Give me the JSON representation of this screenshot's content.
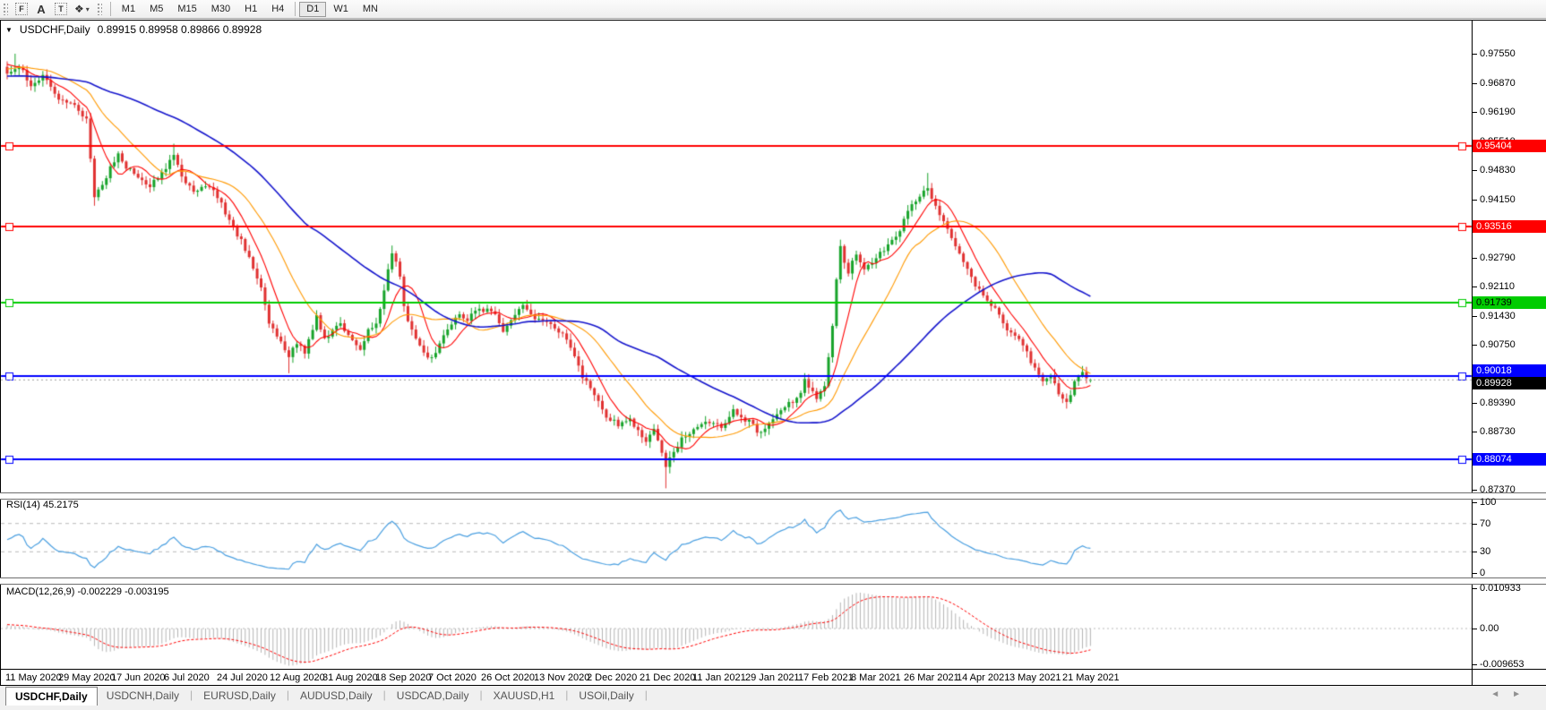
{
  "toolbar": {
    "tools": [
      {
        "name": "fibonacci-tool",
        "glyph": "F"
      },
      {
        "name": "text-tool",
        "glyph": "A"
      },
      {
        "name": "text-label-tool",
        "glyph": "T"
      },
      {
        "name": "arrows-tool",
        "glyph": "❖",
        "caret": "▾"
      }
    ],
    "timeframes": [
      "M1",
      "M5",
      "M15",
      "M30",
      "H1",
      "H4",
      "D1",
      "W1",
      "MN"
    ],
    "active_timeframe": "D1"
  },
  "chart": {
    "collapse_glyph": "▼",
    "symbol_period": "USDCHF,Daily",
    "ohlc_text": "0.89915 0.89958 0.89866 0.89928",
    "open": "0.89915",
    "high": "0.89958",
    "low": "0.89866",
    "close": "0.89928",
    "price_ticks": [
      "0.97550",
      "0.96870",
      "0.96190",
      "0.95510",
      "0.94830",
      "0.94150",
      "0.93470",
      "0.92790",
      "0.92110",
      "0.91430",
      "0.90750",
      "0.90070",
      "0.89390",
      "0.88730",
      "0.88050",
      "0.87370"
    ],
    "hlines": [
      {
        "price": "0.95404",
        "value": 0.95404,
        "color": "#FF0000",
        "text_color": "#FFFFFF"
      },
      {
        "price": "0.93516",
        "value": 0.93516,
        "color": "#FF0000",
        "text_color": "#FFFFFF"
      },
      {
        "price": "0.91739",
        "value": 0.91739,
        "color": "#00CC00",
        "text_color": "#000000"
      },
      {
        "price": "0.90018",
        "value": 0.90018,
        "color": "#0000FF",
        "text_color": "#FFFFFF"
      },
      {
        "price": "0.88074",
        "value": 0.88074,
        "color": "#0000FF",
        "text_color": "#FFFFFF"
      }
    ],
    "bid": {
      "price": "0.89928",
      "value": 0.89928,
      "label_bg": "#000000",
      "text_color": "#FFFFFF"
    }
  },
  "rsi": {
    "label": "RSI(14) 45.2175",
    "period": 14,
    "value": "45.2175",
    "levels": [
      {
        "label": "100",
        "value": 100
      },
      {
        "label": "70",
        "value": 70
      },
      {
        "label": "30",
        "value": 30
      },
      {
        "label": "0",
        "value": 0
      }
    ]
  },
  "macd": {
    "label": "MACD(12,26,9) -0.002229 -0.003195",
    "main_value": "-0.002229",
    "signal_value": "-0.003195",
    "ticks": [
      {
        "label": "0.010933",
        "value": 0.010933
      },
      {
        "label": "0.00",
        "value": 0
      },
      {
        "label": "-0.009653",
        "value": -0.009653
      }
    ]
  },
  "date_axis": [
    "11 May 2020",
    "29 May 2020",
    "17 Jun 2020",
    "6 Jul 2020",
    "24 Jul 2020",
    "12 Aug 2020",
    "31 Aug 2020",
    "18 Sep 2020",
    "7 Oct 2020",
    "26 Oct 2020",
    "13 Nov 2020",
    "2 Dec 2020",
    "21 Dec 2020",
    "11 Jan 2021",
    "29 Jan 2021",
    "17 Feb 2021",
    "8 Mar 2021",
    "26 Mar 2021",
    "14 Apr 2021",
    "3 May 2021",
    "21 May 2021"
  ],
  "tabs": {
    "items": [
      {
        "label": "USDCHF,Daily",
        "active": true
      },
      {
        "label": "USDCNH,Daily",
        "active": false
      },
      {
        "label": "EURUSD,Daily",
        "active": false
      },
      {
        "label": "AUDUSD,Daily",
        "active": false
      },
      {
        "label": "USDCAD,Daily",
        "active": false
      },
      {
        "label": "XAUUSD,H1",
        "active": false
      },
      {
        "label": "USOil,Daily",
        "active": false
      }
    ],
    "scroll_left_glyph": "◄",
    "scroll_right_glyph": "►"
  },
  "colors": {
    "up": "#17a32a",
    "down": "#e03131",
    "ma_fast": "#ff0000",
    "ma_mid": "#ff9900",
    "ma_slow": "#1515cc",
    "rsi_line": "#4a9fe0",
    "level_dash": "#b8b8b8",
    "macd_hist": "#b4b4b4",
    "macd_signal": "#ff0000",
    "bid_line": "#9a9a9a"
  },
  "chart_data": {
    "type": "candlestick",
    "symbol": "USDCHF",
    "timeframe": "Daily",
    "bars_count": 274,
    "price_axis_range": [
      0.8737,
      0.9755
    ],
    "horizontal_lines": [
      0.95404,
      0.93516,
      0.91739,
      0.90018,
      0.88074
    ],
    "last_bar": {
      "open": 0.89915,
      "high": 0.89958,
      "low": 0.89866,
      "close": 0.89928
    },
    "moving_averages": [
      {
        "period": 8,
        "color": "#ff0000"
      },
      {
        "period": 20,
        "color": "#ff9900"
      },
      {
        "period": 55,
        "color": "#1515cc"
      }
    ],
    "indicators": [
      {
        "name": "RSI",
        "period": 14,
        "last": 45.2175,
        "levels": [
          70,
          30
        ]
      },
      {
        "name": "MACD",
        "fast": 12,
        "slow": 26,
        "signal": 9,
        "last_main": -0.002229,
        "last_signal": -0.003195
      }
    ],
    "price_anchors": [
      [
        0,
        0.971
      ],
      [
        3,
        0.9725
      ],
      [
        6,
        0.9685
      ],
      [
        9,
        0.97
      ],
      [
        13,
        0.965
      ],
      [
        16,
        0.9645
      ],
      [
        20,
        0.96
      ],
      [
        22,
        0.9415
      ],
      [
        25,
        0.947
      ],
      [
        28,
        0.952
      ],
      [
        30,
        0.949
      ],
      [
        33,
        0.947
      ],
      [
        36,
        0.9445
      ],
      [
        39,
        0.9475
      ],
      [
        42,
        0.9525
      ],
      [
        44,
        0.947
      ],
      [
        47,
        0.943
      ],
      [
        50,
        0.945
      ],
      [
        52,
        0.944
      ],
      [
        55,
        0.9385
      ],
      [
        57,
        0.935
      ],
      [
        60,
        0.93
      ],
      [
        62,
        0.925
      ],
      [
        64,
        0.921
      ],
      [
        66,
        0.913
      ],
      [
        69,
        0.908
      ],
      [
        71,
        0.9045
      ],
      [
        73,
        0.908
      ],
      [
        75,
        0.906
      ],
      [
        78,
        0.914
      ],
      [
        80,
        0.9085
      ],
      [
        82,
        0.911
      ],
      [
        84,
        0.9125
      ],
      [
        87,
        0.908
      ],
      [
        89,
        0.906
      ],
      [
        91,
        0.911
      ],
      [
        93,
        0.9125
      ],
      [
        95,
        0.92
      ],
      [
        97,
        0.929
      ],
      [
        99,
        0.924
      ],
      [
        100,
        0.916
      ],
      [
        102,
        0.911
      ],
      [
        104,
        0.907
      ],
      [
        107,
        0.904
      ],
      [
        109,
        0.908
      ],
      [
        112,
        0.912
      ],
      [
        114,
        0.915
      ],
      [
        116,
        0.9135
      ],
      [
        118,
        0.915
      ],
      [
        121,
        0.916
      ],
      [
        123,
        0.914
      ],
      [
        125,
        0.91
      ],
      [
        127,
        0.9135
      ],
      [
        130,
        0.9165
      ],
      [
        132,
        0.914
      ],
      [
        134,
        0.913
      ],
      [
        136,
        0.913
      ],
      [
        139,
        0.911
      ],
      [
        141,
        0.909
      ],
      [
        143,
        0.905
      ],
      [
        145,
        0.9
      ],
      [
        148,
        0.896
      ],
      [
        150,
        0.892
      ],
      [
        152,
        0.89
      ],
      [
        154,
        0.889
      ],
      [
        157,
        0.89
      ],
      [
        159,
        0.887
      ],
      [
        161,
        0.885
      ],
      [
        163,
        0.8875
      ],
      [
        166,
        0.879
      ],
      [
        170,
        0.8855
      ],
      [
        173,
        0.888
      ],
      [
        177,
        0.8895
      ],
      [
        180,
        0.888
      ],
      [
        183,
        0.892
      ],
      [
        187,
        0.8895
      ],
      [
        190,
        0.8865
      ],
      [
        193,
        0.8905
      ],
      [
        197,
        0.8935
      ],
      [
        200,
        0.896
      ],
      [
        201,
        0.899
      ],
      [
        204,
        0.895
      ],
      [
        206,
        0.898
      ],
      [
        207,
        0.904
      ],
      [
        208,
        0.912
      ],
      [
        209,
        0.923
      ],
      [
        210,
        0.93
      ],
      [
        212,
        0.9245
      ],
      [
        214,
        0.929
      ],
      [
        216,
        0.9255
      ],
      [
        218,
        0.927
      ],
      [
        221,
        0.93
      ],
      [
        223,
        0.932
      ],
      [
        225,
        0.934
      ],
      [
        227,
        0.939
      ],
      [
        230,
        0.942
      ],
      [
        232,
        0.944
      ],
      [
        234,
        0.94
      ],
      [
        236,
        0.936
      ],
      [
        239,
        0.93
      ],
      [
        241,
        0.927
      ],
      [
        243,
        0.923
      ],
      [
        245,
        0.92
      ],
      [
        248,
        0.917
      ],
      [
        250,
        0.914
      ],
      [
        252,
        0.9115
      ],
      [
        254,
        0.91
      ],
      [
        257,
        0.9055
      ],
      [
        259,
        0.902
      ],
      [
        261,
        0.899
      ],
      [
        263,
        0.9005
      ],
      [
        265,
        0.8965
      ],
      [
        267,
        0.8935
      ],
      [
        269,
        0.8985
      ],
      [
        271,
        0.901
      ],
      [
        273,
        0.89928
      ]
    ],
    "wick_marks": [
      {
        "i": 2,
        "side": "high",
        "ext": 0.0028
      },
      {
        "i": 22,
        "side": "low",
        "ext": 0.0018
      },
      {
        "i": 42,
        "side": "high",
        "ext": 0.0014
      },
      {
        "i": 71,
        "side": "low",
        "ext": 0.003
      },
      {
        "i": 97,
        "side": "high",
        "ext": 0.0012
      },
      {
        "i": 166,
        "side": "low",
        "ext": 0.0046
      },
      {
        "i": 232,
        "side": "high",
        "ext": 0.003
      },
      {
        "i": 267,
        "side": "low",
        "ext": 0.0012
      }
    ]
  }
}
